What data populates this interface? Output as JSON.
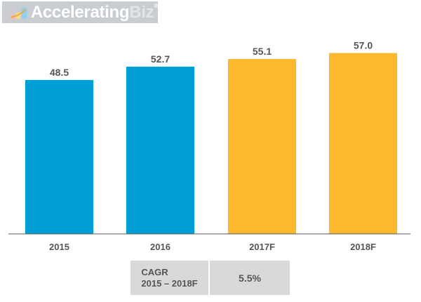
{
  "logo": {
    "name_main": "Accelerating",
    "name_accent": "Biz",
    "reg": "®"
  },
  "chart_data": {
    "type": "bar",
    "categories": [
      "2015",
      "2016",
      "2017F",
      "2018F"
    ],
    "values": [
      48.5,
      52.7,
      55.1,
      57.0
    ],
    "labels": [
      "48.5",
      "52.7",
      "55.1",
      "57.0"
    ],
    "colors": [
      "#009fd8",
      "#009fd8",
      "#fdb92e",
      "#fdb92e"
    ],
    "title": "",
    "xlabel": "",
    "ylabel": "",
    "ylim": [
      0,
      73.7
    ],
    "grid": false
  },
  "cagr": {
    "label_line1": "CAGR",
    "label_line2": "2015 – 2018F",
    "value": "5.5%"
  }
}
